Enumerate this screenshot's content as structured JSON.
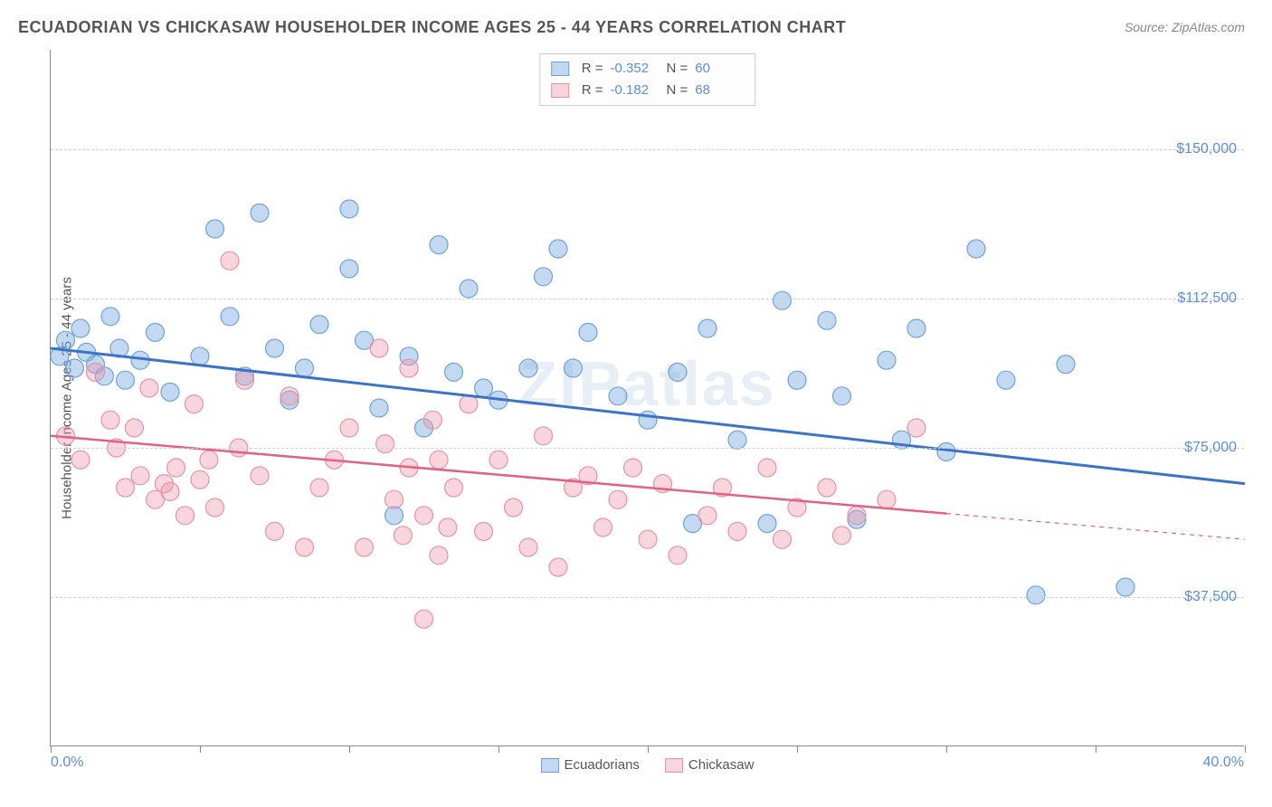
{
  "title": "ECUADORIAN VS CHICKASAW HOUSEHOLDER INCOME AGES 25 - 44 YEARS CORRELATION CHART",
  "source": "Source: ZipAtlas.com",
  "watermark": "ZIPatlas",
  "chart": {
    "type": "scatter",
    "background_color": "#ffffff",
    "grid_color": "#d0d0d0",
    "ylabel": "Householder Income Ages 25 - 44 years",
    "xlim": [
      0,
      40
    ],
    "ylim": [
      0,
      175000
    ],
    "xmin_label": "0.0%",
    "xmax_label": "40.0%",
    "yticks": [
      37500,
      75000,
      112500,
      150000
    ],
    "ytick_labels": [
      "$37,500",
      "$75,000",
      "$112,500",
      "$150,000"
    ],
    "xticks": [
      0,
      5,
      10,
      15,
      20,
      25,
      30,
      35,
      40
    ],
    "label_fontsize": 15,
    "tick_color": "#5b8fd6",
    "series": [
      {
        "name": "Ecuadorians",
        "fill_color": "rgba(120,170,225,0.45)",
        "stroke_color": "#6fa3d8",
        "line_color": "#3b73c6",
        "line_width": 3,
        "marker_radius": 10,
        "R": "-0.352",
        "N": "60",
        "trend": {
          "x1": 0,
          "y1": 100000,
          "x2": 40,
          "y2": 66000,
          "dashed_from_x": null
        },
        "points": [
          [
            0.3,
            98000
          ],
          [
            0.5,
            102000
          ],
          [
            0.8,
            95000
          ],
          [
            1.0,
            105000
          ],
          [
            1.2,
            99000
          ],
          [
            1.5,
            96000
          ],
          [
            1.8,
            93000
          ],
          [
            2.0,
            108000
          ],
          [
            2.3,
            100000
          ],
          [
            2.5,
            92000
          ],
          [
            3.0,
            97000
          ],
          [
            3.5,
            104000
          ],
          [
            4.0,
            89000
          ],
          [
            5.0,
            98000
          ],
          [
            5.5,
            130000
          ],
          [
            6.0,
            108000
          ],
          [
            6.5,
            93000
          ],
          [
            7.0,
            134000
          ],
          [
            7.5,
            100000
          ],
          [
            8.0,
            87000
          ],
          [
            8.5,
            95000
          ],
          [
            9.0,
            106000
          ],
          [
            10.0,
            120000
          ],
          [
            10.0,
            135000
          ],
          [
            10.5,
            102000
          ],
          [
            11.0,
            85000
          ],
          [
            11.5,
            58000
          ],
          [
            12.0,
            98000
          ],
          [
            12.5,
            80000
          ],
          [
            13.0,
            126000
          ],
          [
            13.5,
            94000
          ],
          [
            14.0,
            115000
          ],
          [
            14.5,
            90000
          ],
          [
            15.0,
            87000
          ],
          [
            16.0,
            95000
          ],
          [
            16.5,
            118000
          ],
          [
            17.0,
            125000
          ],
          [
            17.5,
            95000
          ],
          [
            18.0,
            104000
          ],
          [
            19.0,
            88000
          ],
          [
            20.0,
            82000
          ],
          [
            21.0,
            94000
          ],
          [
            21.5,
            56000
          ],
          [
            22.0,
            105000
          ],
          [
            23.0,
            77000
          ],
          [
            24.0,
            56000
          ],
          [
            24.5,
            112000
          ],
          [
            25.0,
            92000
          ],
          [
            26.0,
            107000
          ],
          [
            26.5,
            88000
          ],
          [
            27.0,
            57000
          ],
          [
            28.0,
            97000
          ],
          [
            28.5,
            77000
          ],
          [
            29.0,
            105000
          ],
          [
            30.0,
            74000
          ],
          [
            31.0,
            125000
          ],
          [
            32.0,
            92000
          ],
          [
            33.0,
            38000
          ],
          [
            34.0,
            96000
          ],
          [
            36.0,
            40000
          ]
        ]
      },
      {
        "name": "Chickasaw",
        "fill_color": "rgba(240,150,170,0.40)",
        "stroke_color": "#e592aa",
        "line_color": "#e06287",
        "line_width": 2.5,
        "marker_radius": 10,
        "R": "-0.182",
        "N": "68",
        "trend": {
          "x1": 0,
          "y1": 78000,
          "x2": 40,
          "y2": 52000,
          "dashed_from_x": 30
        },
        "points": [
          [
            0.5,
            78000
          ],
          [
            1.0,
            72000
          ],
          [
            1.5,
            94000
          ],
          [
            2.0,
            82000
          ],
          [
            2.2,
            75000
          ],
          [
            2.5,
            65000
          ],
          [
            2.8,
            80000
          ],
          [
            3.0,
            68000
          ],
          [
            3.3,
            90000
          ],
          [
            3.5,
            62000
          ],
          [
            3.8,
            66000
          ],
          [
            4.0,
            64000
          ],
          [
            4.2,
            70000
          ],
          [
            4.5,
            58000
          ],
          [
            4.8,
            86000
          ],
          [
            5.0,
            67000
          ],
          [
            5.3,
            72000
          ],
          [
            5.5,
            60000
          ],
          [
            6.0,
            122000
          ],
          [
            6.3,
            75000
          ],
          [
            6.5,
            92000
          ],
          [
            7.0,
            68000
          ],
          [
            7.5,
            54000
          ],
          [
            8.0,
            88000
          ],
          [
            8.5,
            50000
          ],
          [
            9.0,
            65000
          ],
          [
            9.5,
            72000
          ],
          [
            10.0,
            80000
          ],
          [
            10.5,
            50000
          ],
          [
            11.0,
            100000
          ],
          [
            11.2,
            76000
          ],
          [
            11.5,
            62000
          ],
          [
            11.8,
            53000
          ],
          [
            12.0,
            70000
          ],
          [
            12.5,
            58000
          ],
          [
            12.8,
            82000
          ],
          [
            13.0,
            48000
          ],
          [
            13.3,
            55000
          ],
          [
            13.5,
            65000
          ],
          [
            14.0,
            86000
          ],
          [
            14.5,
            54000
          ],
          [
            15.0,
            72000
          ],
          [
            15.5,
            60000
          ],
          [
            16.0,
            50000
          ],
          [
            16.5,
            78000
          ],
          [
            17.0,
            45000
          ],
          [
            17.5,
            65000
          ],
          [
            18.0,
            68000
          ],
          [
            18.5,
            55000
          ],
          [
            19.0,
            62000
          ],
          [
            19.5,
            70000
          ],
          [
            20.0,
            52000
          ],
          [
            20.5,
            66000
          ],
          [
            21.0,
            48000
          ],
          [
            22.0,
            58000
          ],
          [
            22.5,
            65000
          ],
          [
            23.0,
            54000
          ],
          [
            24.0,
            70000
          ],
          [
            24.5,
            52000
          ],
          [
            25.0,
            60000
          ],
          [
            26.0,
            65000
          ],
          [
            26.5,
            53000
          ],
          [
            27.0,
            58000
          ],
          [
            28.0,
            62000
          ],
          [
            29.0,
            80000
          ],
          [
            12.5,
            32000
          ],
          [
            12.0,
            95000
          ],
          [
            13.0,
            72000
          ]
        ]
      }
    ]
  },
  "bottom_legend": {
    "items": [
      "Ecuadorians",
      "Chickasaw"
    ]
  }
}
